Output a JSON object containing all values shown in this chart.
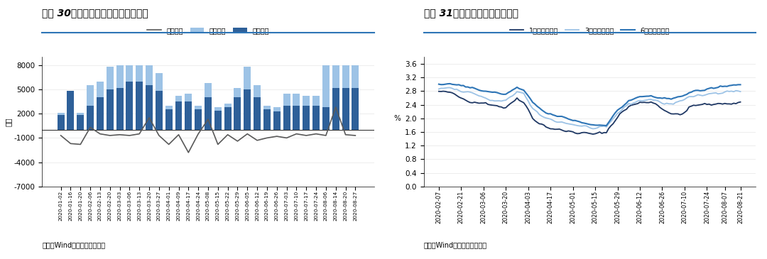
{
  "chart1": {
    "title": "图表 30：本周同业存单净融资额为正",
    "ylabel": "亿元",
    "source": "来源：Wind，国金证券研究所",
    "legend": [
      "总发行量",
      "总偿还量",
      "净融资额"
    ],
    "dates": [
      "2020-01-02",
      "2020-01-16",
      "2020-01-20",
      "2020-02-06",
      "2020-02-13",
      "2020-02-20",
      "2020-03-03",
      "2020-03-06",
      "2020-03-13",
      "2020-03-20",
      "2020-03-27",
      "2020-04-01",
      "2020-04-09",
      "2020-04-17",
      "2020-04-24",
      "2020-05-08",
      "2020-05-15",
      "2020-05-22",
      "2020-05-29",
      "2020-06-05",
      "2020-06-12",
      "2020-06-19",
      "2020-06-26",
      "2020-07-03",
      "2020-07-10",
      "2020-07-17",
      "2020-07-24",
      "2020-08-06",
      "2020-08-14",
      "2020-08-20",
      "2020-08-27"
    ],
    "total_issue": [
      2100,
      3500,
      2100,
      5500,
      6000,
      7800,
      8000,
      8000,
      8000,
      8000,
      7000,
      3000,
      4200,
      4500,
      3000,
      5800,
      2800,
      3200,
      5200,
      7800,
      5500,
      3000,
      2800,
      4500,
      4500,
      4200,
      4200,
      8000,
      8000,
      8000,
      8000
    ],
    "total_repay": [
      1800,
      4800,
      1800,
      3000,
      4000,
      5000,
      5200,
      6000,
      6000,
      5500,
      4800,
      2500,
      3500,
      3500,
      2500,
      4000,
      2400,
      2800,
      4000,
      5000,
      4000,
      2500,
      2300,
      3000,
      3000,
      3000,
      3000,
      2800,
      5200,
      5200,
      5200
    ],
    "net_fund": [
      -700,
      -1700,
      -1800,
      300,
      -500,
      -700,
      -600,
      -700,
      -500,
      1500,
      -700,
      -1800,
      -600,
      -2800,
      -500,
      1300,
      -1800,
      -600,
      -1400,
      -500,
      -1300,
      -1000,
      -800,
      -1000,
      -500,
      -700,
      -500,
      -700,
      2800,
      -600,
      -700
    ],
    "bar_color_issue": "#9DC3E6",
    "bar_color_repay": "#2E6099",
    "line_color": "#595959",
    "ylim": [
      -7000,
      9000
    ],
    "yticks": [
      -7000,
      -4000,
      -1000,
      2000,
      5000,
      8000
    ]
  },
  "chart2": {
    "title": "图表 31：同业存单发行利率上行",
    "ylabel": "%",
    "source": "来源：Wind，国金证券研究所",
    "legend": [
      "1个月发行利率",
      "3个月发行利率",
      "6个月发行利率"
    ],
    "n_points": 136,
    "rate_1m_key": [
      [
        0,
        2.78
      ],
      [
        5,
        2.75
      ],
      [
        10,
        2.6
      ],
      [
        15,
        2.5
      ],
      [
        20,
        2.45
      ],
      [
        25,
        2.4
      ],
      [
        30,
        2.3
      ],
      [
        35,
        2.6
      ],
      [
        38,
        2.5
      ],
      [
        42,
        2.0
      ],
      [
        48,
        1.75
      ],
      [
        54,
        1.65
      ],
      [
        60,
        1.6
      ],
      [
        66,
        1.55
      ],
      [
        70,
        1.53
      ],
      [
        75,
        1.6
      ],
      [
        80,
        2.05
      ],
      [
        85,
        2.35
      ],
      [
        90,
        2.45
      ],
      [
        95,
        2.5
      ],
      [
        100,
        2.3
      ],
      [
        105,
        2.1
      ],
      [
        108,
        2.1
      ],
      [
        112,
        2.3
      ],
      [
        116,
        2.4
      ],
      [
        120,
        2.4
      ],
      [
        124,
        2.4
      ],
      [
        128,
        2.45
      ],
      [
        135,
        2.45
      ]
    ],
    "rate_3m_key": [
      [
        0,
        2.88
      ],
      [
        5,
        2.9
      ],
      [
        10,
        2.8
      ],
      [
        15,
        2.75
      ],
      [
        20,
        2.6
      ],
      [
        25,
        2.5
      ],
      [
        30,
        2.5
      ],
      [
        35,
        2.8
      ],
      [
        38,
        2.72
      ],
      [
        42,
        2.25
      ],
      [
        48,
        2.0
      ],
      [
        54,
        1.9
      ],
      [
        60,
        1.82
      ],
      [
        66,
        1.75
      ],
      [
        70,
        1.7
      ],
      [
        75,
        1.72
      ],
      [
        80,
        2.15
      ],
      [
        85,
        2.42
      ],
      [
        90,
        2.52
      ],
      [
        95,
        2.56
      ],
      [
        100,
        2.45
      ],
      [
        105,
        2.42
      ],
      [
        108,
        2.52
      ],
      [
        112,
        2.62
      ],
      [
        116,
        2.65
      ],
      [
        120,
        2.7
      ],
      [
        124,
        2.75
      ],
      [
        128,
        2.8
      ],
      [
        135,
        2.8
      ]
    ],
    "rate_6m_key": [
      [
        0,
        2.98
      ],
      [
        5,
        3.02
      ],
      [
        10,
        2.95
      ],
      [
        15,
        2.9
      ],
      [
        20,
        2.8
      ],
      [
        25,
        2.75
      ],
      [
        30,
        2.7
      ],
      [
        35,
        2.9
      ],
      [
        38,
        2.82
      ],
      [
        42,
        2.45
      ],
      [
        48,
        2.15
      ],
      [
        54,
        2.05
      ],
      [
        60,
        1.95
      ],
      [
        66,
        1.85
      ],
      [
        70,
        1.8
      ],
      [
        75,
        1.82
      ],
      [
        80,
        2.22
      ],
      [
        85,
        2.52
      ],
      [
        90,
        2.62
      ],
      [
        95,
        2.66
      ],
      [
        100,
        2.56
      ],
      [
        105,
        2.56
      ],
      [
        108,
        2.66
      ],
      [
        112,
        2.76
      ],
      [
        116,
        2.8
      ],
      [
        120,
        2.85
      ],
      [
        124,
        2.9
      ],
      [
        128,
        2.95
      ],
      [
        135,
        3.0
      ]
    ],
    "xtick_positions": [
      0,
      10,
      20,
      30,
      40,
      50,
      60,
      70,
      80,
      90,
      100,
      110,
      120,
      128,
      135
    ],
    "xtick_labels": [
      "2020-02-07",
      "2020-02-21",
      "2020-03-06",
      "2020-03-20",
      "2020-04-03",
      "2020-04-17",
      "2020-05-01",
      "2020-05-15",
      "2020-05-29",
      "2020-06-12",
      "2020-06-26",
      "2020-07-10",
      "2020-07-24",
      "2020-08-07",
      "2020-08-21"
    ],
    "color_1m": "#1F3864",
    "color_3m": "#9DC3E6",
    "color_6m": "#2E75B6",
    "ylim": [
      0.0,
      3.8
    ],
    "yticks": [
      0.0,
      0.4,
      0.8,
      1.2,
      1.6,
      2.0,
      2.4,
      2.8,
      3.2,
      3.6
    ]
  },
  "bg_color": "#ffffff",
  "divider_color": "#4472C4",
  "title_line_color": "#2E75B6"
}
